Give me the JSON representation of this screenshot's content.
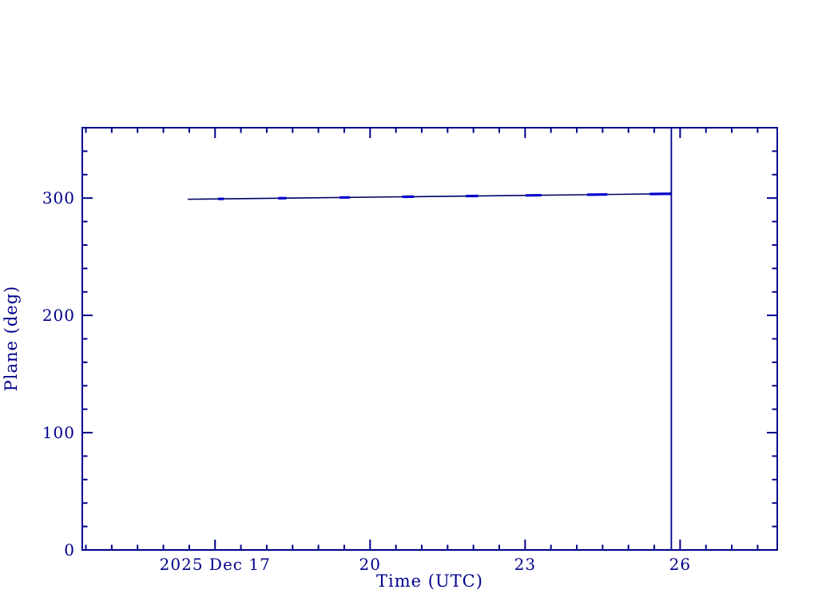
{
  "chart_data": {
    "type": "line",
    "title": "",
    "xlabel": "Time (UTC)",
    "ylabel": "Plane (deg)",
    "grid": false,
    "legend": false,
    "background": "#ffffff",
    "frame_color": "#00008b",
    "text_color": "#00008b",
    "x_axis": {
      "min": 14.43,
      "max": 27.88,
      "unit": "hours UTC from 2025 Dec 17 00:00",
      "major_ticks": [
        {
          "value": 17,
          "label": "2025 Dec 17"
        },
        {
          "value": 20,
          "label": "20"
        },
        {
          "value": 23,
          "label": "23"
        },
        {
          "value": 26,
          "label": "26"
        }
      ],
      "minor_tick_step": 0.5
    },
    "y_axis": {
      "min": 0,
      "max": 360,
      "major_ticks": [
        {
          "value": 0,
          "label": "0"
        },
        {
          "value": 100,
          "label": "100"
        },
        {
          "value": 200,
          "label": "200"
        },
        {
          "value": 300,
          "label": "300"
        }
      ],
      "minor_tick_step": 20
    },
    "series": [
      {
        "name": "plane-angle",
        "color": "#000066",
        "width": 1.6,
        "points": [
          [
            16.47,
            299.0
          ],
          [
            25.83,
            303.7
          ]
        ]
      }
    ],
    "marker_segments": {
      "name": "plane-angle-dashes",
      "color": "#0000cc",
      "width": 3.2,
      "ranges": [
        [
          17.06,
          17.17
        ],
        [
          18.22,
          18.38
        ],
        [
          19.41,
          19.61
        ],
        [
          20.62,
          20.85
        ],
        [
          21.85,
          22.09
        ],
        [
          23.01,
          23.32
        ],
        [
          24.2,
          24.59
        ],
        [
          25.41,
          25.83
        ]
      ]
    },
    "vline": {
      "x": 25.83,
      "color": "#00008b",
      "width": 1.8
    },
    "tick_style": {
      "direction": "in",
      "major_len": 13,
      "minor_len": 6.5,
      "stroke": 2,
      "mirrored": true
    }
  }
}
